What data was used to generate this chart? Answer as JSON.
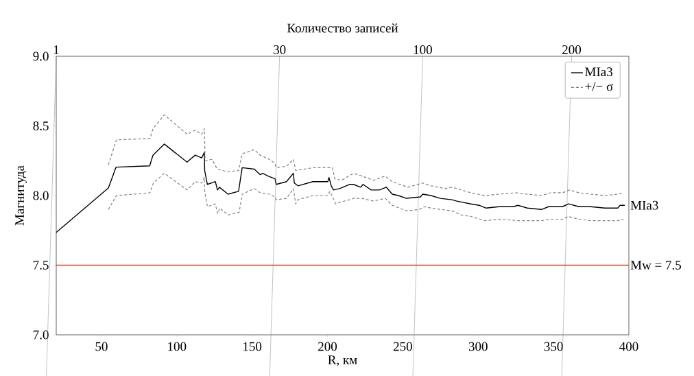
{
  "chart_data": {
    "type": "line",
    "xlabel": "R, км",
    "ylabel": "Магнитуда",
    "x2label": "Количество записей",
    "xlim": [
      20,
      400
    ],
    "xticks": [
      50,
      100,
      150,
      200,
      250,
      300,
      350,
      400
    ],
    "ylim": [
      7.0,
      9.0
    ],
    "yticks": [
      {
        "value": 7.0,
        "label": "7.0"
      },
      {
        "value": 7.5,
        "label": "7.5"
      },
      {
        "value": 8.0,
        "label": "8.0"
      },
      {
        "value": 8.5,
        "label": "8.5"
      },
      {
        "value": 9.0,
        "label": "9.0"
      }
    ],
    "annotations": [
      "1",
      "30",
      "100",
      "200"
    ],
    "legend": "top right",
    "ref_lines": [
      {
        "axis": "y",
        "value": 7.5,
        "label": "Mw = 7.5",
        "color": "#e0402a"
      }
    ],
    "series": [
      {
        "name": "MIa3",
        "color": "#000000",
        "line_style": "solid",
        "x": [
          20,
          54.6,
          59.7,
          82,
          84.2,
          91.7,
          106.8,
          112.2,
          116.5,
          118.3,
          118.5,
          120.3,
          125.6,
          127,
          128.3,
          134,
          141,
          143.4,
          151.5,
          155.3,
          157,
          160.6,
          165.2,
          166,
          172.8,
          177.4,
          178,
          180.4,
          190.3,
          200.2,
          201,
          202.5,
          204,
          208,
          214.6,
          217.3,
          222,
          223.6,
          229,
          234.4,
          239,
          243,
          247,
          252.4,
          261.7,
          263.2,
          268.7,
          274.9,
          282.7,
          285.8,
          295.2,
          300.6,
          305.3,
          313.9,
          323.3,
          326.4,
          332.6,
          342,
          346.7,
          356,
          359.9,
          367,
          374.7,
          384.1,
          392.6,
          394.2,
          397.3
        ],
        "values": [
          7.735,
          8.054,
          8.204,
          8.213,
          8.29,
          8.37,
          8.24,
          8.29,
          8.27,
          8.31,
          8.18,
          8.08,
          8.1,
          8.04,
          8.06,
          8.01,
          8.03,
          8.2,
          8.19,
          8.15,
          8.16,
          8.14,
          8.12,
          8.08,
          8.1,
          8.16,
          8.09,
          8.07,
          8.1,
          8.1,
          8.13,
          8.07,
          8.04,
          8.05,
          8.08,
          8.08,
          8.06,
          8.08,
          8.04,
          8.04,
          8.06,
          8.01,
          8.0,
          7.98,
          7.99,
          8.01,
          8.0,
          7.98,
          7.97,
          7.96,
          7.94,
          7.93,
          7.91,
          7.92,
          7.92,
          7.93,
          7.91,
          7.9,
          7.92,
          7.92,
          7.94,
          7.92,
          7.92,
          7.91,
          7.91,
          7.93,
          7.93
        ]
      },
      {
        "name": "+/− σ",
        "color": "#808080",
        "line_style": "dashed",
        "x": [
          54.6,
          59.9,
          82.2,
          84.2,
          91.7,
          106.9,
          112.2,
          116.5,
          118.3,
          118.8,
          123.4,
          126.8,
          134,
          141,
          143.4,
          151.5,
          155.3,
          161.4,
          165.2,
          166,
          172.8,
          177.4,
          178.9,
          190.3,
          200.2,
          203.3,
          204.8,
          209.4,
          217.3,
          222.8,
          230.6,
          238.3,
          243,
          253.3,
          263.2,
          268.7,
          278,
          282.7,
          289,
          295.2,
          304.6,
          313.9,
          324.8,
          332.6,
          342,
          348.2,
          356,
          360.7,
          367,
          374.7,
          384.1,
          392.6,
          396.5
        ],
        "values": [
          8.22,
          8.4,
          8.41,
          8.48,
          8.58,
          8.44,
          8.47,
          8.44,
          8.48,
          8.25,
          8.26,
          8.19,
          8.17,
          8.18,
          8.3,
          8.33,
          8.29,
          8.26,
          8.23,
          8.2,
          8.21,
          8.26,
          8.18,
          8.2,
          8.2,
          8.2,
          8.12,
          8.11,
          8.16,
          8.14,
          8.11,
          8.14,
          8.1,
          8.06,
          8.09,
          8.07,
          8.05,
          8.06,
          8.04,
          8.02,
          8.0,
          8.01,
          8.02,
          8.01,
          8.0,
          8.02,
          8.02,
          8.04,
          8.02,
          8.01,
          8.0,
          8.01,
          8.02
        ]
      },
      {
        "color": "#808080",
        "line_style": "dashed",
        "x": [
          54.6,
          59.9,
          82.2,
          84.5,
          91.7,
          106.9,
          112.2,
          116.5,
          118.3,
          118.5,
          120.3,
          125.6,
          127,
          128.6,
          134,
          141.4,
          143.4,
          151.5,
          155.3,
          161.4,
          165.2,
          166,
          172.8,
          177.4,
          178.9,
          180.4,
          190.3,
          200.2,
          201.6,
          205.5,
          207.8,
          214.6,
          217.3,
          222.8,
          230.6,
          238.3,
          243,
          252.4,
          261,
          264,
          268.7,
          282.7,
          289,
          295.2,
          304.6,
          313.9,
          326.4,
          332.6,
          342,
          348.2,
          356,
          359.9,
          367,
          374.7,
          384.1,
          392.6,
          396.5
        ],
        "values": [
          7.9,
          8.0,
          8.02,
          8.09,
          8.16,
          8.04,
          8.1,
          8.09,
          8.13,
          8.03,
          7.92,
          7.94,
          7.87,
          7.91,
          7.86,
          7.88,
          8.01,
          8.05,
          8.02,
          8.01,
          7.99,
          7.97,
          7.98,
          8.05,
          7.94,
          7.97,
          8.0,
          8.0,
          8.03,
          7.94,
          7.95,
          7.97,
          7.98,
          7.98,
          7.96,
          7.98,
          7.93,
          7.89,
          7.9,
          7.92,
          7.91,
          7.89,
          7.86,
          7.85,
          7.82,
          7.83,
          7.82,
          7.82,
          7.82,
          7.83,
          7.83,
          7.85,
          7.83,
          7.82,
          7.82,
          7.82,
          7.83
        ]
      }
    ]
  }
}
